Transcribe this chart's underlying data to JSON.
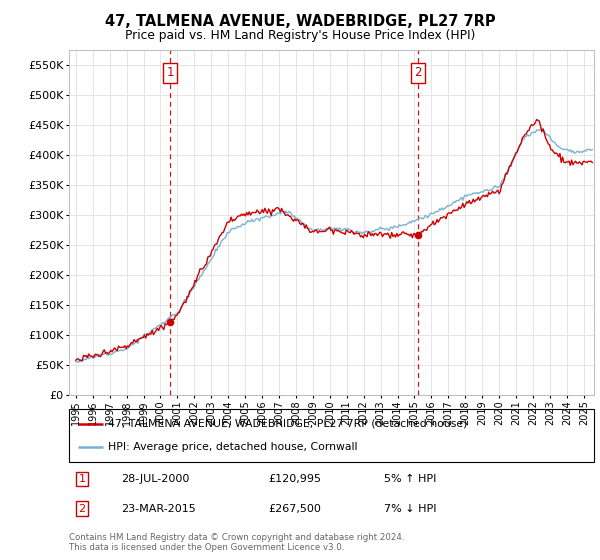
{
  "title": "47, TALMENA AVENUE, WADEBRIDGE, PL27 7RP",
  "subtitle": "Price paid vs. HM Land Registry's House Price Index (HPI)",
  "legend_line1": "47, TALMENA AVENUE, WADEBRIDGE, PL27 7RP (detached house)",
  "legend_line2": "HPI: Average price, detached house, Cornwall",
  "annotation1_label": "1",
  "annotation1_date": "28-JUL-2000",
  "annotation1_price": "£120,995",
  "annotation1_hpi": "5% ↑ HPI",
  "annotation2_label": "2",
  "annotation2_date": "23-MAR-2015",
  "annotation2_price": "£267,500",
  "annotation2_hpi": "7% ↓ HPI",
  "footnote1": "Contains HM Land Registry data © Crown copyright and database right 2024.",
  "footnote2": "This data is licensed under the Open Government Licence v3.0.",
  "hpi_color": "#7ab3d4",
  "price_color": "#cc0000",
  "vline_color": "#cc0000",
  "ylim": [
    0,
    575000
  ],
  "yticks": [
    0,
    50000,
    100000,
    150000,
    200000,
    250000,
    300000,
    350000,
    400000,
    450000,
    500000,
    550000
  ],
  "xlabel_years": [
    "1995",
    "1996",
    "1997",
    "1998",
    "1999",
    "2000",
    "2001",
    "2002",
    "2003",
    "2004",
    "2005",
    "2006",
    "2007",
    "2008",
    "2009",
    "2010",
    "2011",
    "2012",
    "2013",
    "2014",
    "2015",
    "2016",
    "2017",
    "2018",
    "2019",
    "2020",
    "2021",
    "2022",
    "2023",
    "2024",
    "2025"
  ],
  "sale1_x": 2000.57,
  "sale1_y": 120995,
  "sale2_x": 2015.22,
  "sale2_y": 267500,
  "xlim_left": 1994.6,
  "xlim_right": 2025.6,
  "background_color": "#ffffff",
  "grid_color": "#e5e5e5"
}
